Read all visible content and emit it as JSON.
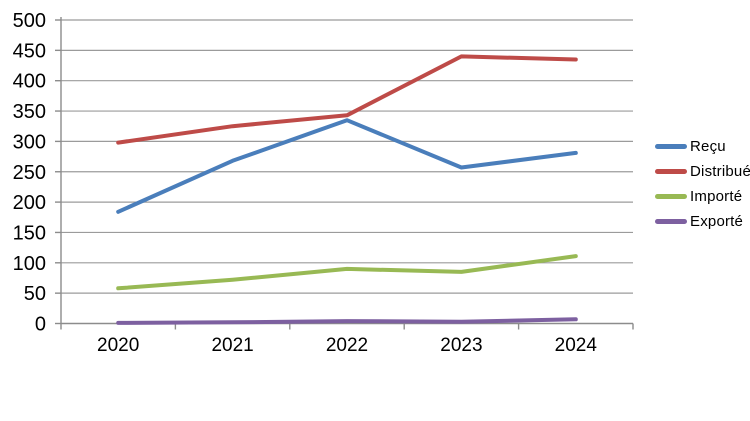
{
  "chart_data": {
    "type": "line",
    "title": "",
    "xlabel": "",
    "ylabel": "",
    "categories": [
      "2020",
      "2021",
      "2022",
      "2023",
      "2024"
    ],
    "series": [
      {
        "key": "recu",
        "name": "Reçu",
        "color": "#4A7EBB",
        "values": [
          184,
          268,
          335,
          257,
          281
        ]
      },
      {
        "key": "distribue",
        "name": "Distribué",
        "color": "#BE4B48",
        "values": [
          298,
          325,
          343,
          440,
          435
        ]
      },
      {
        "key": "importe",
        "name": "Importé",
        "color": "#98B954",
        "values": [
          58,
          72,
          90,
          85,
          111
        ]
      },
      {
        "key": "exporte",
        "name": "Exporté",
        "color": "#7D60A0",
        "values": [
          1,
          2,
          4,
          3,
          7
        ]
      }
    ],
    "ylim": [
      0,
      500
    ],
    "yticks": [
      0,
      50,
      100,
      150,
      200,
      250,
      300,
      350,
      400,
      450,
      500
    ],
    "grid": true,
    "legend_position": "right"
  },
  "colors": {
    "background": "#FFFFFF",
    "grid": "#9B9B9B",
    "axis": "#8C8C8C",
    "text": "#000000"
  }
}
